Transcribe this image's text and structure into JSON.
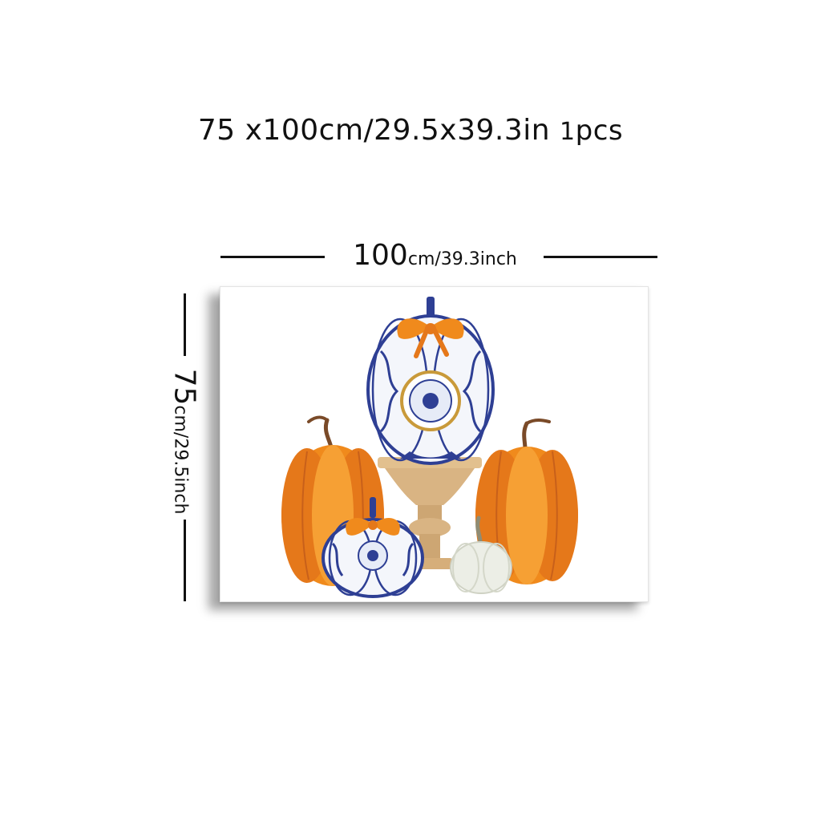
{
  "title": {
    "size_text": "75 x100cm/29.5x39.3in",
    "pcs_number": "1",
    "pcs_unit": "pcs"
  },
  "width_dimension": {
    "number": "100",
    "unit_text": "cm/39.3inch"
  },
  "height_dimension": {
    "number": "75",
    "unit_text": "cm/29.5inch"
  },
  "artwork": {
    "subject": "blue-and-white chinoiserie pumpkins with orange pumpkins on a pedestal",
    "colors": {
      "orange": "#f08a1c",
      "orange_dark": "#c8601a",
      "porcelain_blue": "#2e3f94",
      "porcelain_white": "#f4f6fb",
      "pedestal": "#d9b483",
      "white_pumpkin": "#eceee6",
      "stem_brown": "#7a4a28",
      "gold_rim": "#c99a3a"
    }
  }
}
